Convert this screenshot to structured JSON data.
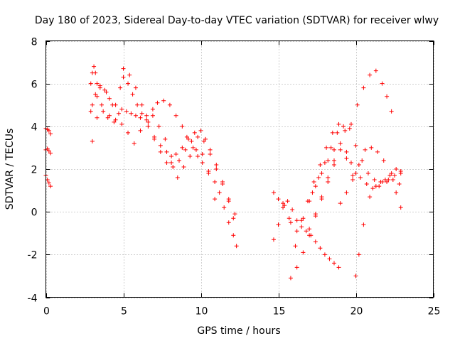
{
  "chart_data": {
    "type": "scatter",
    "title": "Day 180 of 2023, Sidereal Day-to-day VTEC variation (SDTVAR) for receiver wlwy",
    "xlabel": "GPS time / hours",
    "ylabel": "SDTVAR / TECUs",
    "xlim": [
      0,
      25
    ],
    "ylim": [
      -4,
      8
    ],
    "xticks": [
      "0",
      "5",
      "10",
      "15",
      "20",
      "25"
    ],
    "yticks": [
      "-4",
      "-2",
      "0",
      "2",
      "4",
      "6",
      "8"
    ],
    "grid": true,
    "marker": "+",
    "color": "#ff0000",
    "series": [
      {
        "x": [
          0.0,
          0.1,
          0.2,
          0.3
        ],
        "y": [
          3.9,
          3.85,
          3.8,
          3.65
        ]
      },
      {
        "x": [
          0.0,
          0.1,
          0.2,
          0.3
        ],
        "y": [
          2.9,
          2.95,
          2.85,
          2.75
        ]
      },
      {
        "x": [
          0.0,
          0.1,
          0.2,
          0.3
        ],
        "y": [
          1.7,
          1.5,
          1.35,
          1.2
        ]
      },
      {
        "x": [
          2.9,
          3.0,
          3.1,
          3.2,
          3.3,
          3.5,
          3.8,
          4.1,
          4.5,
          4.9,
          5.2,
          5.5,
          5.8,
          6.1,
          6.5,
          6.9,
          7.2,
          7.6,
          8.0,
          8.4,
          8.8,
          9.1,
          9.5,
          9.8,
          10.1,
          10.5,
          10.9,
          11.2,
          11.5,
          11.8,
          12.1,
          12.3
        ],
        "y": [
          6.0,
          6.5,
          6.8,
          6.5,
          6.0,
          5.8,
          5.7,
          5.3,
          5.0,
          4.8,
          4.7,
          4.6,
          4.5,
          4.4,
          4.5,
          4.8,
          5.1,
          5.2,
          5.0,
          4.5,
          4.0,
          3.5,
          3.0,
          2.6,
          2.3,
          1.9,
          1.4,
          0.9,
          0.2,
          -0.5,
          -1.1,
          -1.6
        ]
      },
      {
        "x": [
          3.0,
          3.3,
          3.6,
          4.0,
          4.4,
          4.8,
          5.0,
          5.3,
          5.6,
          5.9,
          6.2,
          6.6,
          7.0,
          7.4,
          7.8,
          8.1,
          8.4,
          8.8,
          9.2,
          9.6,
          10.0,
          10.3,
          10.6,
          11.0,
          11.4,
          11.8,
          12.1
        ],
        "y": [
          5.0,
          5.4,
          5.0,
          4.4,
          4.2,
          5.8,
          6.3,
          6.0,
          5.5,
          5.0,
          4.6,
          4.0,
          3.5,
          3.1,
          2.8,
          2.6,
          2.7,
          3.0,
          3.4,
          3.7,
          3.8,
          3.4,
          2.9,
          2.2,
          1.4,
          0.5,
          -0.3
        ]
      },
      {
        "x": [
          2.9,
          3.2,
          3.5,
          3.9,
          4.3,
          4.7,
          5.0,
          5.4,
          5.8,
          6.2,
          6.6,
          7.0,
          7.4,
          7.8,
          8.2,
          8.6,
          9.0,
          9.4,
          9.8,
          10.2,
          10.6,
          11.0,
          11.4,
          11.8,
          12.2
        ],
        "y": [
          4.7,
          5.5,
          5.9,
          5.6,
          5.0,
          4.6,
          6.7,
          6.4,
          5.8,
          5.0,
          4.2,
          3.4,
          2.8,
          2.3,
          2.1,
          2.4,
          2.9,
          3.3,
          3.5,
          3.3,
          2.7,
          2.0,
          1.3,
          0.6,
          -0.1
        ]
      },
      {
        "x": [
          3.0,
          3.3,
          3.7,
          4.1,
          4.5,
          4.9,
          5.3,
          5.7,
          6.1,
          6.5,
          6.9,
          7.3,
          7.7,
          8.1,
          8.5,
          8.9,
          9.3,
          9.7,
          10.1,
          10.5,
          10.9
        ],
        "y": [
          3.3,
          4.4,
          4.7,
          4.5,
          4.3,
          4.1,
          3.7,
          3.2,
          3.8,
          4.3,
          4.5,
          4.0,
          3.4,
          2.3,
          1.6,
          2.1,
          2.6,
          2.9,
          2.7,
          1.8,
          0.6
        ]
      },
      {
        "x": [
          14.7,
          15.0,
          15.3,
          15.6,
          15.9,
          16.2,
          16.5,
          16.8,
          17.1,
          17.4,
          17.7,
          18.0,
          18.3,
          18.6,
          18.9
        ],
        "y": [
          -1.3,
          -0.6,
          0.2,
          0.5,
          0.1,
          -0.4,
          -0.7,
          -0.9,
          -1.1,
          -1.4,
          -1.7,
          -2.0,
          -2.2,
          -2.4,
          -2.6
        ]
      },
      {
        "x": [
          14.7,
          15.0,
          15.4,
          15.8,
          16.2,
          16.6,
          17.0,
          17.4,
          17.8,
          18.2,
          18.6,
          19.0,
          19.4,
          19.7,
          20.0,
          20.3,
          20.7,
          21.1,
          21.5,
          21.9,
          22.3,
          22.6,
          22.9
        ],
        "y": [
          0.9,
          0.6,
          0.3,
          -0.5,
          -0.9,
          -0.3,
          0.5,
          1.2,
          1.8,
          2.4,
          2.9,
          3.2,
          2.8,
          2.3,
          1.8,
          1.6,
          1.3,
          1.1,
          1.2,
          1.5,
          1.8,
          2.0,
          1.9
        ]
      },
      {
        "x": [
          15.3,
          15.7,
          16.1,
          16.5,
          16.9,
          17.3,
          17.7,
          18.1,
          18.5,
          18.9,
          19.3,
          19.7,
          20.1,
          20.5,
          20.9,
          21.3,
          21.7,
          22.0,
          22.3
        ],
        "y": [
          0.4,
          -0.3,
          -1.6,
          -0.4,
          0.5,
          1.4,
          2.2,
          3.0,
          3.7,
          4.1,
          3.8,
          4.1,
          5.0,
          5.8,
          6.4,
          6.6,
          6.0,
          5.4,
          4.7
        ]
      },
      {
        "x": [
          15.8,
          16.2,
          16.6,
          17.0,
          17.4,
          17.8,
          18.2,
          18.6,
          19.0,
          19.4,
          19.8,
          20.2,
          20.6,
          21.0,
          21.4,
          21.8,
          22.2,
          22.6,
          22.9
        ],
        "y": [
          -3.1,
          -2.6,
          -1.9,
          -1.1,
          -0.2,
          0.7,
          1.6,
          2.4,
          0.4,
          0.9,
          1.5,
          2.2,
          2.9,
          3.0,
          2.8,
          2.4,
          1.7,
          0.9,
          0.2
        ]
      },
      {
        "x": [
          17.0,
          17.4,
          17.8,
          18.2,
          18.6,
          19.0,
          19.4,
          19.8,
          20.0,
          20.2,
          20.5,
          20.9,
          21.3,
          21.7,
          22.1,
          22.5,
          22.9
        ],
        "y": [
          -0.8,
          -0.1,
          0.6,
          1.4,
          2.2,
          2.9,
          2.5,
          1.7,
          -3.0,
          -2.0,
          -0.6,
          0.7,
          1.2,
          1.4,
          1.5,
          1.7,
          1.8
        ]
      },
      {
        "x": [
          17.2,
          17.6,
          18.0,
          18.4,
          18.8,
          19.2,
          19.6,
          20.0,
          20.4,
          20.8,
          21.2,
          21.6,
          22.0,
          22.4,
          22.8
        ],
        "y": [
          0.9,
          1.6,
          2.3,
          3.0,
          3.7,
          4.0,
          3.9,
          3.1,
          2.4,
          1.8,
          1.5,
          1.4,
          1.4,
          1.5,
          1.3
        ]
      }
    ]
  }
}
